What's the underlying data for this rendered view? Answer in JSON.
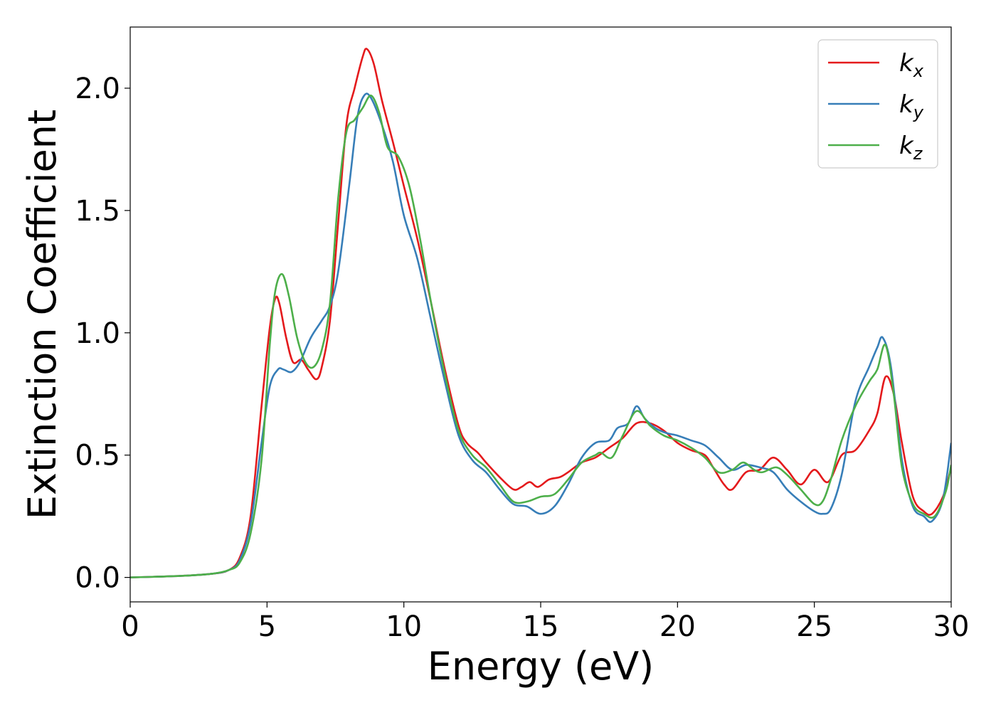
{
  "chart_data": {
    "type": "line",
    "title": "",
    "xlabel": "Energy (eV)",
    "ylabel": "Extinction Coefficient",
    "xlim": [
      0,
      30
    ],
    "ylim": [
      -0.1,
      2.25
    ],
    "xticks": [
      0,
      5,
      10,
      15,
      20,
      25,
      30
    ],
    "xtick_labels": [
      "0",
      "5",
      "10",
      "15",
      "20",
      "25",
      "30"
    ],
    "yticks": [
      0.0,
      0.5,
      1.0,
      1.5,
      2.0
    ],
    "ytick_labels": [
      "0.0",
      "0.5",
      "1.0",
      "1.5",
      "2.0"
    ],
    "grid": false,
    "legend_position": "top-right",
    "series": [
      {
        "name": "k",
        "subscript": "x",
        "color": "#e41a1c",
        "points": [
          [
            0,
            0.0
          ],
          [
            1,
            0.003
          ],
          [
            2,
            0.007
          ],
          [
            3,
            0.015
          ],
          [
            3.6,
            0.03
          ],
          [
            4,
            0.08
          ],
          [
            4.4,
            0.25
          ],
          [
            4.8,
            0.7
          ],
          [
            5.1,
            1.02
          ],
          [
            5.3,
            1.14
          ],
          [
            5.45,
            1.12
          ],
          [
            5.7,
            0.98
          ],
          [
            5.95,
            0.88
          ],
          [
            6.25,
            0.89
          ],
          [
            6.5,
            0.85
          ],
          [
            6.8,
            0.81
          ],
          [
            7,
            0.86
          ],
          [
            7.3,
            1.05
          ],
          [
            7.6,
            1.45
          ],
          [
            7.9,
            1.85
          ],
          [
            8.2,
            2.0
          ],
          [
            8.5,
            2.13
          ],
          [
            8.65,
            2.16
          ],
          [
            8.9,
            2.1
          ],
          [
            9.2,
            1.95
          ],
          [
            9.6,
            1.78
          ],
          [
            10,
            1.6
          ],
          [
            10.5,
            1.38
          ],
          [
            11,
            1.12
          ],
          [
            11.5,
            0.85
          ],
          [
            12,
            0.62
          ],
          [
            12.3,
            0.55
          ],
          [
            12.7,
            0.51
          ],
          [
            13,
            0.47
          ],
          [
            13.5,
            0.41
          ],
          [
            14,
            0.36
          ],
          [
            14.3,
            0.37
          ],
          [
            14.6,
            0.39
          ],
          [
            14.9,
            0.37
          ],
          [
            15.3,
            0.4
          ],
          [
            15.7,
            0.41
          ],
          [
            16,
            0.43
          ],
          [
            16.5,
            0.47
          ],
          [
            17,
            0.49
          ],
          [
            17.5,
            0.53
          ],
          [
            18,
            0.57
          ],
          [
            18.5,
            0.63
          ],
          [
            19,
            0.63
          ],
          [
            19.5,
            0.6
          ],
          [
            20,
            0.55
          ],
          [
            20.5,
            0.52
          ],
          [
            21,
            0.5
          ],
          [
            21.3,
            0.45
          ],
          [
            21.7,
            0.38
          ],
          [
            22,
            0.36
          ],
          [
            22.5,
            0.43
          ],
          [
            23,
            0.44
          ],
          [
            23.5,
            0.49
          ],
          [
            24,
            0.44
          ],
          [
            24.5,
            0.38
          ],
          [
            25,
            0.44
          ],
          [
            25.5,
            0.39
          ],
          [
            26,
            0.5
          ],
          [
            26.5,
            0.52
          ],
          [
            27,
            0.6
          ],
          [
            27.3,
            0.67
          ],
          [
            27.6,
            0.82
          ],
          [
            27.9,
            0.75
          ],
          [
            28.2,
            0.55
          ],
          [
            28.6,
            0.33
          ],
          [
            29,
            0.27
          ],
          [
            29.3,
            0.26
          ],
          [
            29.7,
            0.33
          ],
          [
            30,
            0.45
          ]
        ]
      },
      {
        "name": "k",
        "subscript": "y",
        "color": "#377eb8",
        "points": [
          [
            0,
            0.0
          ],
          [
            1,
            0.003
          ],
          [
            2,
            0.007
          ],
          [
            3,
            0.015
          ],
          [
            3.6,
            0.03
          ],
          [
            4,
            0.07
          ],
          [
            4.4,
            0.22
          ],
          [
            4.8,
            0.55
          ],
          [
            5.1,
            0.78
          ],
          [
            5.4,
            0.85
          ],
          [
            5.6,
            0.85
          ],
          [
            5.9,
            0.84
          ],
          [
            6.2,
            0.88
          ],
          [
            6.6,
            0.98
          ],
          [
            7,
            1.05
          ],
          [
            7.3,
            1.11
          ],
          [
            7.6,
            1.25
          ],
          [
            8,
            1.6
          ],
          [
            8.3,
            1.88
          ],
          [
            8.55,
            1.97
          ],
          [
            8.8,
            1.96
          ],
          [
            9.2,
            1.85
          ],
          [
            9.6,
            1.7
          ],
          [
            10,
            1.48
          ],
          [
            10.5,
            1.3
          ],
          [
            11,
            1.05
          ],
          [
            11.5,
            0.8
          ],
          [
            12,
            0.58
          ],
          [
            12.5,
            0.48
          ],
          [
            13,
            0.43
          ],
          [
            13.5,
            0.36
          ],
          [
            14,
            0.3
          ],
          [
            14.5,
            0.29
          ],
          [
            15,
            0.26
          ],
          [
            15.5,
            0.29
          ],
          [
            16,
            0.38
          ],
          [
            16.5,
            0.49
          ],
          [
            17,
            0.55
          ],
          [
            17.5,
            0.56
          ],
          [
            17.8,
            0.61
          ],
          [
            18.2,
            0.63
          ],
          [
            18.5,
            0.7
          ],
          [
            18.8,
            0.65
          ],
          [
            19.2,
            0.61
          ],
          [
            19.6,
            0.59
          ],
          [
            20,
            0.58
          ],
          [
            20.5,
            0.56
          ],
          [
            21,
            0.54
          ],
          [
            21.5,
            0.49
          ],
          [
            22,
            0.44
          ],
          [
            22.5,
            0.46
          ],
          [
            23,
            0.45
          ],
          [
            23.5,
            0.43
          ],
          [
            24,
            0.36
          ],
          [
            24.5,
            0.31
          ],
          [
            25,
            0.27
          ],
          [
            25.3,
            0.26
          ],
          [
            25.6,
            0.28
          ],
          [
            26,
            0.42
          ],
          [
            26.5,
            0.72
          ],
          [
            27,
            0.86
          ],
          [
            27.3,
            0.94
          ],
          [
            27.5,
            0.98
          ],
          [
            27.8,
            0.86
          ],
          [
            28.2,
            0.48
          ],
          [
            28.6,
            0.29
          ],
          [
            29,
            0.25
          ],
          [
            29.3,
            0.23
          ],
          [
            29.7,
            0.32
          ],
          [
            30,
            0.55
          ]
        ]
      },
      {
        "name": "k",
        "subscript": "z",
        "color": "#4daf4a",
        "points": [
          [
            0,
            0.0
          ],
          [
            1,
            0.003
          ],
          [
            2,
            0.007
          ],
          [
            3,
            0.015
          ],
          [
            3.6,
            0.03
          ],
          [
            4,
            0.06
          ],
          [
            4.4,
            0.18
          ],
          [
            4.8,
            0.48
          ],
          [
            5.1,
            0.95
          ],
          [
            5.3,
            1.17
          ],
          [
            5.55,
            1.24
          ],
          [
            5.8,
            1.15
          ],
          [
            6.1,
            0.98
          ],
          [
            6.4,
            0.88
          ],
          [
            6.7,
            0.86
          ],
          [
            7,
            0.93
          ],
          [
            7.3,
            1.12
          ],
          [
            7.6,
            1.55
          ],
          [
            7.9,
            1.82
          ],
          [
            8.2,
            1.87
          ],
          [
            8.5,
            1.92
          ],
          [
            8.8,
            1.97
          ],
          [
            9.1,
            1.9
          ],
          [
            9.4,
            1.76
          ],
          [
            9.8,
            1.72
          ],
          [
            10.2,
            1.6
          ],
          [
            10.6,
            1.38
          ],
          [
            11,
            1.12
          ],
          [
            11.5,
            0.83
          ],
          [
            12,
            0.6
          ],
          [
            12.5,
            0.5
          ],
          [
            13,
            0.45
          ],
          [
            13.5,
            0.38
          ],
          [
            14,
            0.31
          ],
          [
            14.5,
            0.31
          ],
          [
            15,
            0.33
          ],
          [
            15.5,
            0.34
          ],
          [
            16,
            0.4
          ],
          [
            16.5,
            0.47
          ],
          [
            17,
            0.5
          ],
          [
            17.2,
            0.51
          ],
          [
            17.6,
            0.49
          ],
          [
            18,
            0.58
          ],
          [
            18.5,
            0.68
          ],
          [
            19,
            0.62
          ],
          [
            19.5,
            0.58
          ],
          [
            20,
            0.56
          ],
          [
            20.5,
            0.53
          ],
          [
            21,
            0.49
          ],
          [
            21.5,
            0.43
          ],
          [
            22,
            0.44
          ],
          [
            22.4,
            0.47
          ],
          [
            22.8,
            0.44
          ],
          [
            23.1,
            0.43
          ],
          [
            23.6,
            0.45
          ],
          [
            24,
            0.42
          ],
          [
            24.5,
            0.36
          ],
          [
            25,
            0.3
          ],
          [
            25.3,
            0.31
          ],
          [
            25.6,
            0.4
          ],
          [
            26,
            0.56
          ],
          [
            26.5,
            0.7
          ],
          [
            27,
            0.8
          ],
          [
            27.3,
            0.85
          ],
          [
            27.6,
            0.95
          ],
          [
            27.9,
            0.75
          ],
          [
            28.2,
            0.45
          ],
          [
            28.6,
            0.3
          ],
          [
            29,
            0.26
          ],
          [
            29.4,
            0.25
          ],
          [
            29.8,
            0.35
          ],
          [
            30,
            0.46
          ]
        ]
      }
    ]
  }
}
